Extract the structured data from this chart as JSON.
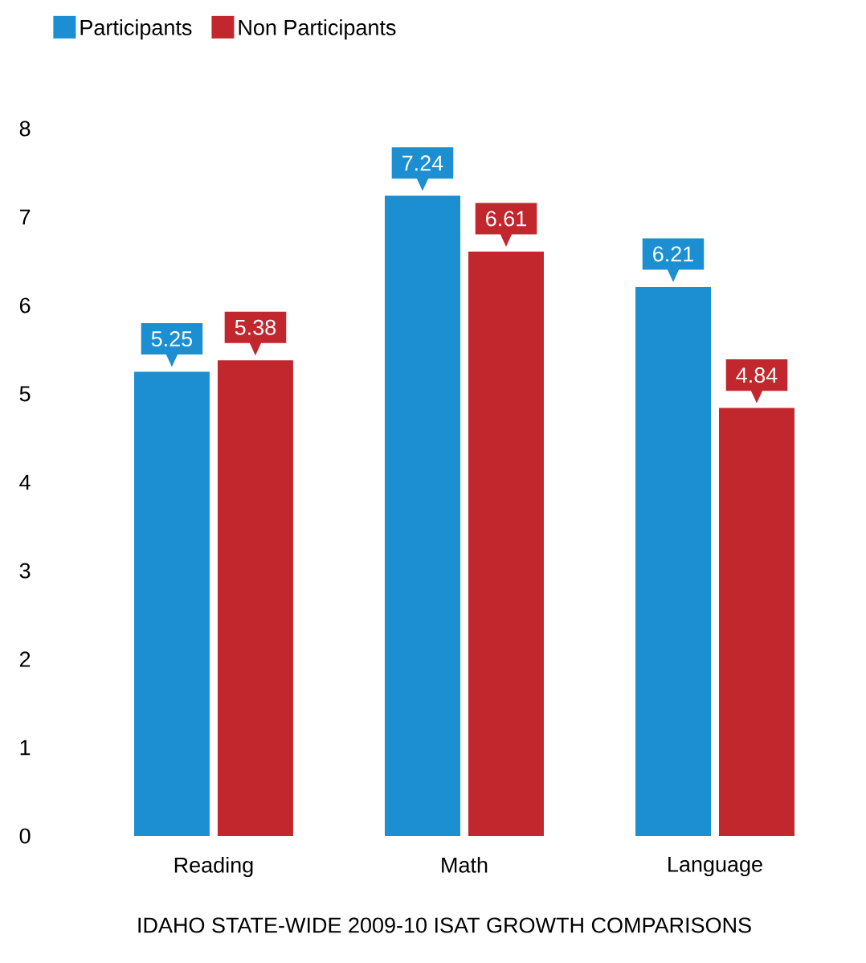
{
  "chart_data": {
    "type": "bar",
    "title": "IDAHO STATE-WIDE 2009-10 ISAT GROWTH COMPARISONS",
    "categories": [
      "Reading",
      "Math",
      "Language"
    ],
    "series": [
      {
        "name": "Participants",
        "color": "#1b8fd2",
        "values": [
          5.25,
          7.24,
          6.21
        ]
      },
      {
        "name": "Non Participants",
        "color": "#c1272d",
        "values": [
          5.38,
          6.61,
          4.84
        ]
      }
    ],
    "ylim": [
      0,
      8
    ],
    "yticks": [
      0,
      1,
      2,
      3,
      4,
      5,
      6,
      7,
      8
    ],
    "grid": false,
    "legend": "top left",
    "data_labels": true
  }
}
